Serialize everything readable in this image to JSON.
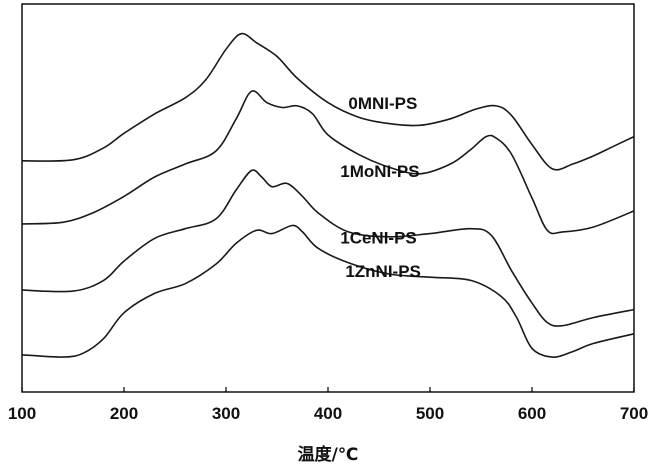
{
  "chart_data": {
    "type": "line",
    "title": "",
    "xlabel": "温度/℃",
    "ylabel": "",
    "xlim": [
      100,
      700
    ],
    "x_ticks": [
      100,
      200,
      300,
      400,
      500,
      600,
      700
    ],
    "y_ticks_shown": false,
    "grid": false,
    "legend": "labels placed beside curves",
    "series": [
      {
        "name": "0MNI-PS",
        "x": [
          100,
          150,
          180,
          200,
          230,
          260,
          280,
          300,
          315,
          330,
          350,
          370,
          400,
          430,
          460,
          490,
          520,
          545,
          565,
          580,
          600,
          620,
          640,
          660,
          680,
          700
        ],
        "y": [
          7.15,
          7.18,
          7.55,
          8.0,
          8.6,
          9.1,
          9.65,
          10.6,
          11.08,
          10.8,
          10.38,
          9.7,
          8.95,
          8.5,
          8.3,
          8.25,
          8.45,
          8.75,
          8.85,
          8.55,
          7.65,
          6.9,
          7.05,
          7.3,
          7.6,
          7.9
        ]
      },
      {
        "name": "1MoNI-PS",
        "x": [
          100,
          140,
          170,
          200,
          230,
          260,
          290,
          310,
          325,
          340,
          355,
          370,
          385,
          400,
          430,
          460,
          490,
          520,
          540,
          555,
          565,
          580,
          600,
          615,
          630,
          660,
          700
        ],
        "y": [
          5.2,
          5.25,
          5.55,
          6.05,
          6.65,
          7.05,
          7.45,
          8.45,
          9.3,
          8.95,
          8.8,
          8.85,
          8.6,
          7.95,
          7.35,
          6.95,
          6.75,
          7.05,
          7.5,
          7.9,
          7.85,
          7.35,
          6.0,
          5.0,
          4.95,
          5.1,
          5.6
        ]
      },
      {
        "name": "1CeNI-PS",
        "x": [
          100,
          150,
          180,
          200,
          230,
          260,
          290,
          310,
          325,
          335,
          345,
          360,
          375,
          390,
          420,
          460,
          500,
          540,
          560,
          580,
          600,
          615,
          630,
          660,
          700
        ],
        "y": [
          3.15,
          3.12,
          3.45,
          4.05,
          4.75,
          5.05,
          5.35,
          6.25,
          6.85,
          6.65,
          6.35,
          6.45,
          6.05,
          5.55,
          4.95,
          4.8,
          4.9,
          5.05,
          4.85,
          3.75,
          2.75,
          2.15,
          2.05,
          2.3,
          2.55
        ]
      },
      {
        "name": "1ZnNI-PS",
        "x": [
          100,
          140,
          160,
          180,
          200,
          230,
          260,
          290,
          310,
          330,
          345,
          365,
          375,
          390,
          420,
          460,
          500,
          540,
          570,
          585,
          600,
          620,
          640,
          660,
          700
        ],
        "y": [
          1.15,
          1.08,
          1.2,
          1.65,
          2.45,
          3.05,
          3.35,
          3.95,
          4.6,
          5.0,
          4.9,
          5.15,
          4.95,
          4.45,
          4.0,
          3.65,
          3.55,
          3.45,
          2.95,
          2.3,
          1.35,
          1.08,
          1.25,
          1.5,
          1.8
        ]
      }
    ],
    "series_labels": [
      {
        "series": "0MNI-PS",
        "x": 420,
        "y": 8.75
      },
      {
        "series": "1MoNI-PS",
        "x": 412,
        "y": 6.65
      },
      {
        "series": "1CeNI-PS",
        "x": 412,
        "y": 4.6
      },
      {
        "series": "1ZnNI-PS",
        "x": 417,
        "y": 3.55
      }
    ],
    "ylim": [
      0,
      12
    ]
  }
}
